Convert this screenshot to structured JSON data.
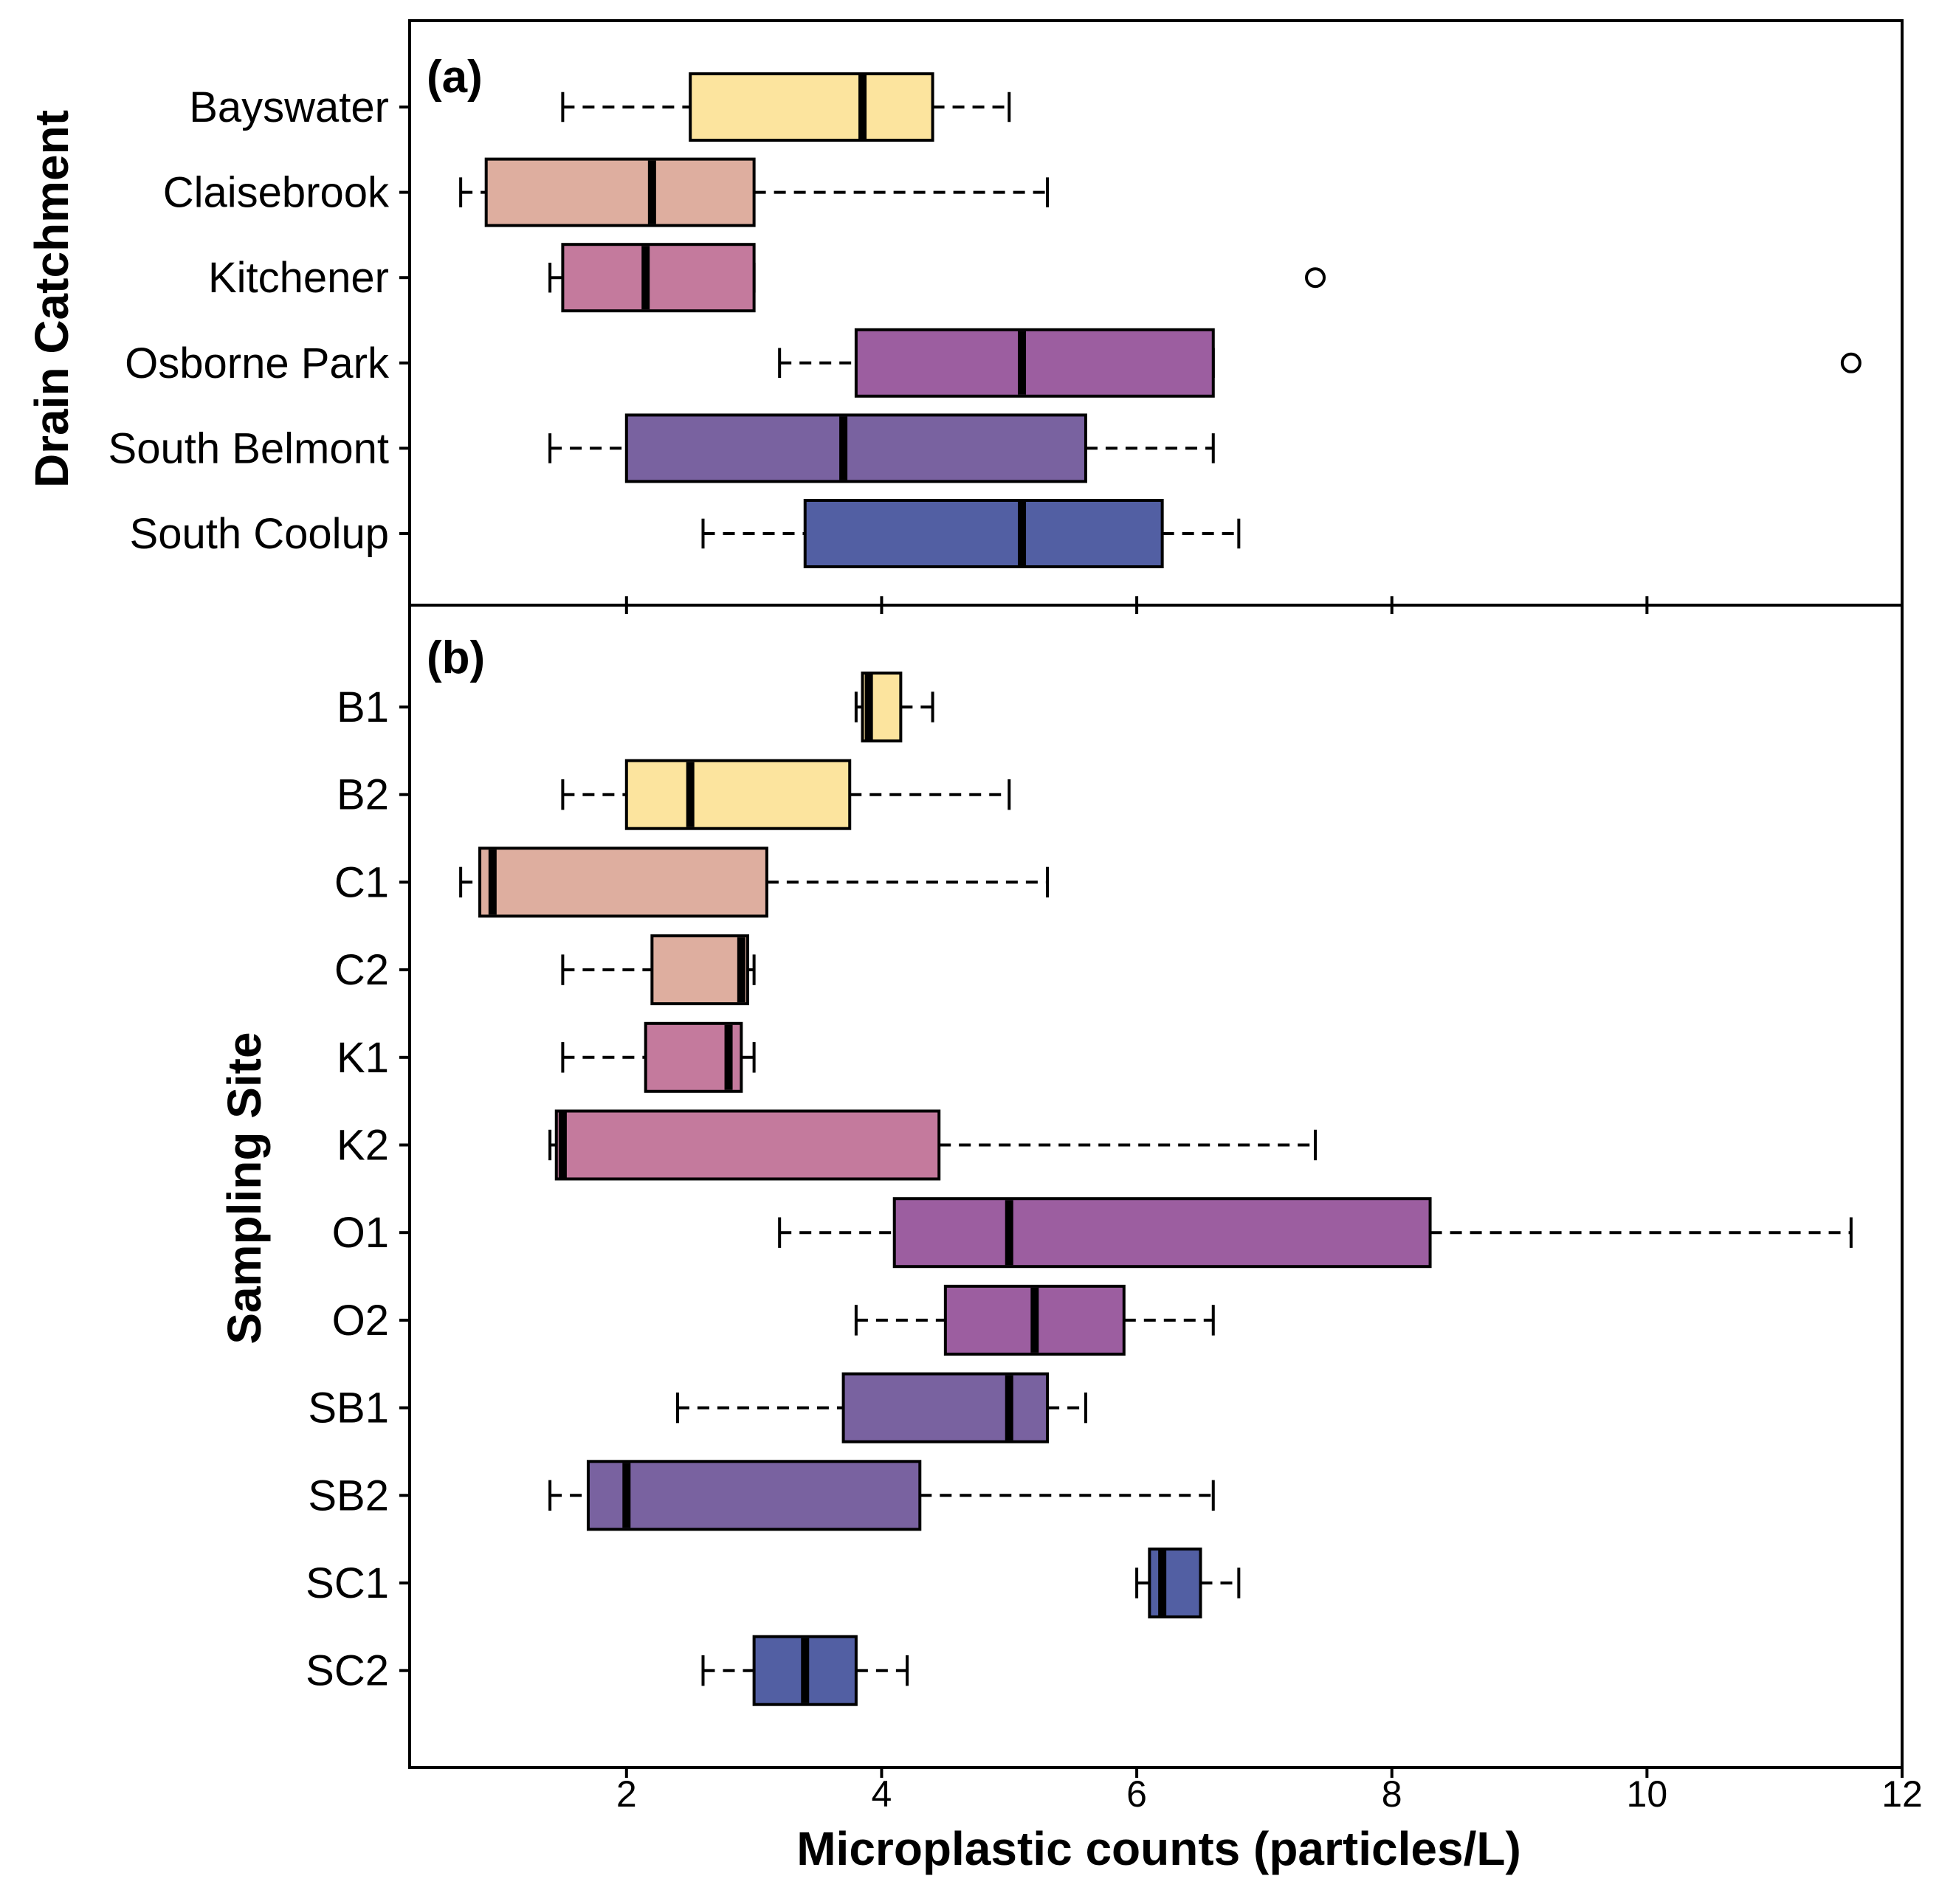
{
  "chart_data": {
    "type": "boxplot",
    "orientation": "horizontal",
    "xlabel": "Microplastic counts (particles/L)",
    "xlim": [
      0.3,
      12.0
    ],
    "xticks": [
      2,
      4,
      6,
      8,
      10,
      12
    ],
    "xtick_labels": [
      "2",
      "4",
      "6",
      "8",
      "10",
      "12"
    ],
    "panels": [
      {
        "panel_label": "(a)",
        "ylabel": "Drain Catchment",
        "groups": [
          {
            "name": "Bayswater",
            "color": "#FCE49E",
            "whislo": 1.5,
            "q1": 2.5,
            "med": 3.85,
            "q3": 4.4,
            "whishi": 5.0,
            "outliers": []
          },
          {
            "name": "Claisebrook",
            "color": "#DEAE9F",
            "whislo": 0.7,
            "q1": 0.9,
            "med": 2.2,
            "q3": 3.0,
            "whishi": 5.3,
            "outliers": []
          },
          {
            "name": "Kitchener",
            "color": "#C47A9D",
            "whislo": 1.4,
            "q1": 1.5,
            "med": 2.15,
            "q3": 3.0,
            "whishi": 3.0,
            "outliers": [
              7.4
            ]
          },
          {
            "name": "Osborne Park",
            "color": "#9C5EA0",
            "whislo": 3.2,
            "q1": 3.8,
            "med": 5.1,
            "q3": 6.6,
            "whishi": 6.6,
            "outliers": [
              11.6
            ]
          },
          {
            "name": "South Belmont",
            "color": "#7962A0",
            "whislo": 1.4,
            "q1": 2.0,
            "med": 3.7,
            "q3": 5.6,
            "whishi": 6.6,
            "outliers": []
          },
          {
            "name": "South Coolup",
            "color": "#525FA3",
            "whislo": 2.6,
            "q1": 3.4,
            "med": 5.1,
            "q3": 6.2,
            "whishi": 6.8,
            "outliers": []
          }
        ]
      },
      {
        "panel_label": "(b)",
        "ylabel": "Sampling Site",
        "groups": [
          {
            "name": "B1",
            "color": "#FCE49E",
            "whislo": 3.8,
            "q1": 3.85,
            "med": 3.9,
            "q3": 4.15,
            "whishi": 4.4,
            "outliers": []
          },
          {
            "name": "B2",
            "color": "#FCE49E",
            "whislo": 1.5,
            "q1": 2.0,
            "med": 2.5,
            "q3": 3.75,
            "whishi": 5.0,
            "outliers": []
          },
          {
            "name": "C1",
            "color": "#DEAE9F",
            "whislo": 0.7,
            "q1": 0.85,
            "med": 0.95,
            "q3": 3.1,
            "whishi": 5.3,
            "outliers": []
          },
          {
            "name": "C2",
            "color": "#DEAE9F",
            "whislo": 1.5,
            "q1": 2.2,
            "med": 2.9,
            "q3": 2.95,
            "whishi": 3.0,
            "outliers": []
          },
          {
            "name": "K1",
            "color": "#C47A9D",
            "whislo": 1.5,
            "q1": 2.15,
            "med": 2.8,
            "q3": 2.9,
            "whishi": 3.0,
            "outliers": []
          },
          {
            "name": "K2",
            "color": "#C47A9D",
            "whislo": 1.4,
            "q1": 1.45,
            "med": 1.5,
            "q3": 4.45,
            "whishi": 7.4,
            "outliers": []
          },
          {
            "name": "O1",
            "color": "#9C5EA0",
            "whislo": 3.2,
            "q1": 4.1,
            "med": 5.0,
            "q3": 8.3,
            "whishi": 11.6,
            "outliers": []
          },
          {
            "name": "O2",
            "color": "#9C5EA0",
            "whislo": 3.8,
            "q1": 4.5,
            "med": 5.2,
            "q3": 5.9,
            "whishi": 6.6,
            "outliers": []
          },
          {
            "name": "SB1",
            "color": "#7962A0",
            "whislo": 2.4,
            "q1": 3.7,
            "med": 5.0,
            "q3": 5.3,
            "whishi": 5.6,
            "outliers": []
          },
          {
            "name": "SB2",
            "color": "#7962A0",
            "whislo": 1.4,
            "q1": 1.7,
            "med": 2.0,
            "q3": 4.3,
            "whishi": 6.6,
            "outliers": []
          },
          {
            "name": "SC1",
            "color": "#525FA3",
            "whislo": 6.0,
            "q1": 6.1,
            "med": 6.2,
            "q3": 6.5,
            "whishi": 6.8,
            "outliers": []
          },
          {
            "name": "SC2",
            "color": "#525FA3",
            "whislo": 2.6,
            "q1": 3.0,
            "med": 3.4,
            "q3": 3.8,
            "whishi": 4.2,
            "outliers": []
          }
        ]
      }
    ]
  }
}
